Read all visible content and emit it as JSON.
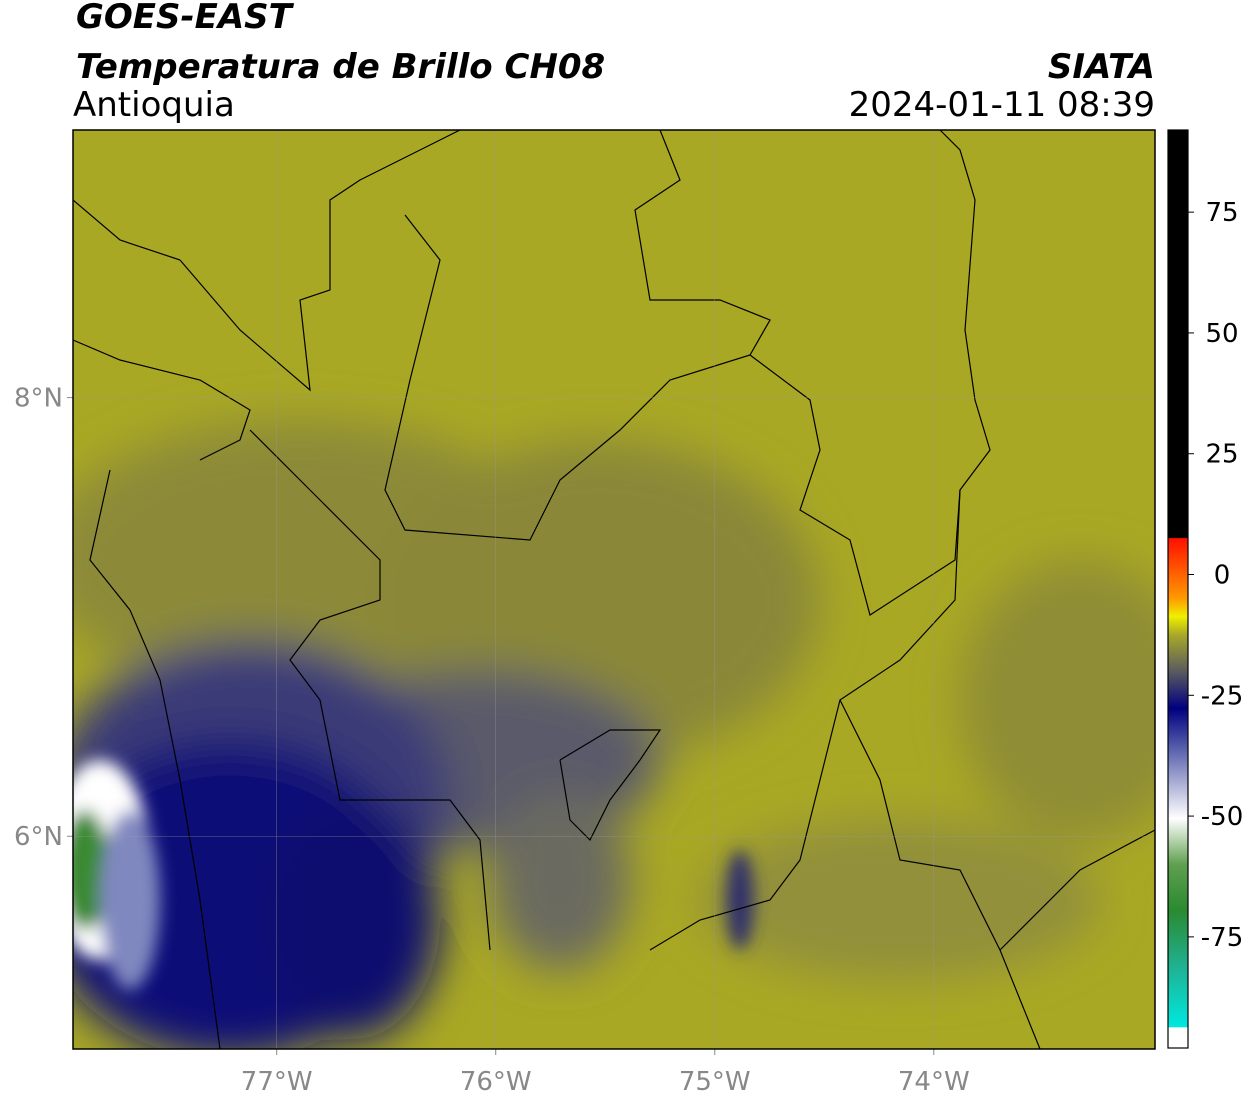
{
  "header": {
    "title": "GOES-EAST",
    "subtitle": "Temperatura de Brillo CH08",
    "source": "SIATA",
    "region": "Antioquia",
    "datetime": "2024-01-11 08:39"
  },
  "map": {
    "lon_range": [
      -77.93,
      -72.99
    ],
    "lat_range": [
      5.03,
      9.22
    ],
    "lon_ticks": [
      {
        "value": -77,
        "label": "77°W"
      },
      {
        "value": -76,
        "label": "76°W"
      },
      {
        "value": -75,
        "label": "75°W"
      },
      {
        "value": -74,
        "label": "74°W"
      }
    ],
    "lat_ticks": [
      {
        "value": 8,
        "label": "8°N"
      },
      {
        "value": 6,
        "label": "6°N"
      }
    ]
  },
  "colorbar": {
    "range": [
      -98,
      92
    ],
    "ticks": [
      75,
      50,
      25,
      0,
      -25,
      -50,
      -75
    ]
  }
}
